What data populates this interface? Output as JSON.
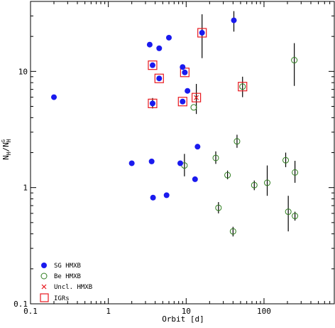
{
  "chart_data": {
    "type": "scatter",
    "title": "",
    "xlabel": "Orbit [d]",
    "ylabel_main": "N",
    "ylabel_sub": "H",
    "ylabel_slash": "/",
    "ylabel_main2": "N",
    "ylabel_sub2": "H",
    "ylabel_sup2": "G",
    "xscale": "log",
    "yscale": "log",
    "xlim": [
      0.1,
      800
    ],
    "ylim": [
      0.1,
      40
    ],
    "xticks": [
      {
        "value": 0.1,
        "label": "0.1"
      },
      {
        "value": 1,
        "label": "1"
      },
      {
        "value": 10,
        "label": "10"
      },
      {
        "value": 100,
        "label": "100"
      }
    ],
    "yticks": [
      {
        "value": 0.1,
        "label": "0.1"
      },
      {
        "value": 1,
        "label": "1"
      },
      {
        "value": 10,
        "label": "10"
      }
    ],
    "legend_position": "bottom-left",
    "legend": [
      {
        "key": "sg",
        "label": "SG HMXB"
      },
      {
        "key": "be",
        "label": "Be HMXB"
      },
      {
        "key": "uncl",
        "label": "Uncl. HMXB"
      },
      {
        "key": "igr",
        "label": "IGRs"
      }
    ],
    "colors": {
      "sg": "#1a1aee",
      "be": "#2e7d1e",
      "uncl": "#e8181e",
      "igr": "#e8181e",
      "errbar": "#000000"
    },
    "series": [
      {
        "key": "sg",
        "name": "SG HMXB",
        "points": [
          {
            "x": 0.2,
            "y": 6.0
          },
          {
            "x": 2.0,
            "y": 1.62
          },
          {
            "x": 3.4,
            "y": 17.0
          },
          {
            "x": 3.6,
            "y": 1.68
          },
          {
            "x": 3.75,
            "y": 0.82
          },
          {
            "x": 3.7,
            "y": 11.3
          },
          {
            "x": 3.7,
            "y": 5.3,
            "err": [
              4.8,
              5.9
            ]
          },
          {
            "x": 4.5,
            "y": 15.8
          },
          {
            "x": 4.5,
            "y": 8.7
          },
          {
            "x": 5.6,
            "y": 0.86
          },
          {
            "x": 6.0,
            "y": 19.5
          },
          {
            "x": 8.4,
            "y": 1.62
          },
          {
            "x": 9.0,
            "y": 10.9
          },
          {
            "x": 9.0,
            "y": 5.5
          },
          {
            "x": 9.6,
            "y": 9.8
          },
          {
            "x": 10.4,
            "y": 6.8
          },
          {
            "x": 13.0,
            "y": 1.18
          },
          {
            "x": 14.0,
            "y": 2.25
          },
          {
            "x": 16.0,
            "y": 21.5,
            "err": [
              13.0,
              31.0
            ]
          },
          {
            "x": 41.0,
            "y": 27.5,
            "err": [
              22.0,
              33.0
            ]
          }
        ]
      },
      {
        "key": "be",
        "name": "Be HMXB",
        "points": [
          {
            "x": 9.5,
            "y": 1.55,
            "err": [
              1.25,
              1.95
            ]
          },
          {
            "x": 12.5,
            "y": 4.9
          },
          {
            "x": 24.0,
            "y": 1.8,
            "err": [
              1.6,
              2.05
            ]
          },
          {
            "x": 26.0,
            "y": 0.67,
            "err": [
              0.6,
              0.75
            ]
          },
          {
            "x": 34.0,
            "y": 1.28,
            "err": [
              1.18,
              1.4
            ]
          },
          {
            "x": 40.0,
            "y": 0.42,
            "err": [
              0.38,
              0.46
            ]
          },
          {
            "x": 45.0,
            "y": 2.5,
            "err": [
              2.2,
              2.85
            ]
          },
          {
            "x": 53.0,
            "y": 7.4,
            "err": [
              6.0,
              9.0
            ]
          },
          {
            "x": 75.0,
            "y": 1.05,
            "err": [
              0.95,
              1.15
            ]
          },
          {
            "x": 110.0,
            "y": 1.1,
            "err": [
              0.85,
              1.55
            ]
          },
          {
            "x": 190.0,
            "y": 1.72,
            "err": [
              1.5,
              2.0
            ]
          },
          {
            "x": 205.0,
            "y": 0.62,
            "err": [
              0.42,
              0.85
            ]
          },
          {
            "x": 245.0,
            "y": 12.5,
            "err": [
              7.5,
              17.5
            ]
          },
          {
            "x": 250.0,
            "y": 1.35,
            "err": [
              1.1,
              1.7
            ]
          },
          {
            "x": 250.0,
            "y": 0.57,
            "err": [
              0.52,
              0.62
            ]
          }
        ]
      },
      {
        "key": "uncl",
        "name": "Uncl. HMXB",
        "points": [
          {
            "x": 13.5,
            "y": 5.95,
            "err": [
              4.3,
              7.8
            ]
          }
        ]
      },
      {
        "key": "igr",
        "name": "IGRs",
        "points": [
          {
            "x": 3.7,
            "y": 11.3
          },
          {
            "x": 3.7,
            "y": 5.3
          },
          {
            "x": 4.5,
            "y": 8.7
          },
          {
            "x": 9.0,
            "y": 5.5
          },
          {
            "x": 9.6,
            "y": 9.8
          },
          {
            "x": 13.5,
            "y": 5.95
          },
          {
            "x": 16.0,
            "y": 21.5
          },
          {
            "x": 53.0,
            "y": 7.4
          }
        ]
      }
    ]
  }
}
